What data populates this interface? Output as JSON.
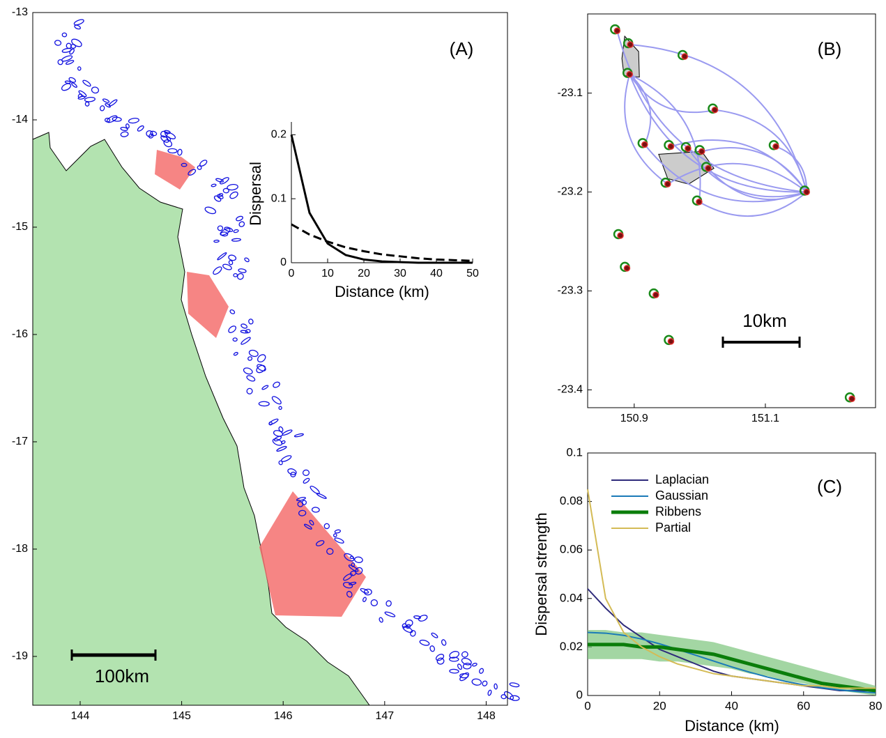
{
  "chart_data": [
    {
      "type": "map",
      "label": "(A)",
      "scale_bar": "100km",
      "xlim": [
        143.533,
        148.21
      ],
      "ylim": [
        -19.455,
        -13
      ],
      "xticks": [
        144,
        145,
        146,
        147,
        148
      ],
      "yticks": [
        -13,
        -14,
        -15,
        -16,
        -17,
        -18,
        -19
      ],
      "inset": {
        "type": "line",
        "xlabel": "Distance (km)",
        "ylabel": "Dispersal",
        "xlim": [
          0,
          50
        ],
        "ylim": [
          0,
          0.22
        ],
        "xticks": [
          0,
          10,
          20,
          30,
          40,
          50
        ],
        "yticks": [
          0,
          0.1,
          0.2
        ],
        "x": [
          0,
          5,
          10,
          15,
          20,
          25,
          30,
          35,
          40,
          45,
          50
        ],
        "series": [
          {
            "color": "#000000",
            "style": "solid",
            "values": [
              0.2,
              0.078,
              0.03,
              0.012,
              0.005,
              0.002,
              0.001,
              0,
              0,
              0,
              0
            ]
          },
          {
            "color": "#000000",
            "style": "dashed",
            "values": [
              0.06,
              0.044,
              0.033,
              0.024,
              0.018,
              0.013,
              0.01,
              0.007,
              0.005,
              0.004,
              0.003
            ]
          }
        ]
      }
    },
    {
      "type": "map",
      "label": "(B)",
      "scale_bar": "10km",
      "xlim": [
        150.829,
        151.268
      ],
      "ylim": [
        -23.418,
        -23.02
      ],
      "xticks": [
        150.9,
        151.1
      ],
      "yticks": [
        -23.1,
        -23.2,
        -23.3,
        -23.4
      ],
      "points": {
        "x": [
          150.874,
          150.894,
          150.893,
          150.977,
          151.023,
          150.916,
          150.956,
          150.982,
          151.003,
          151.013,
          150.951,
          150.999,
          151.116,
          151.163,
          150.879,
          150.889,
          150.933,
          150.956,
          151.232
        ],
        "y": [
          -23.037,
          -23.051,
          -23.081,
          -23.063,
          -23.117,
          -23.152,
          -23.154,
          -23.156,
          -23.159,
          -23.176,
          -23.192,
          -23.21,
          -23.154,
          -23.2,
          -23.244,
          -23.277,
          -23.304,
          -23.351,
          -23.409
        ]
      }
    },
    {
      "type": "line",
      "label": "(C)",
      "xlabel": "Distance (km)",
      "ylabel": "Dispersal strength",
      "xlim": [
        0,
        80
      ],
      "ylim": [
        0,
        0.1
      ],
      "xticks": [
        0,
        20,
        40,
        60,
        80
      ],
      "yticks": [
        0,
        0.02,
        0.04,
        0.06,
        0.08,
        0.1
      ],
      "x": [
        0,
        5,
        10,
        15,
        20,
        25,
        30,
        35,
        40,
        45,
        50,
        55,
        60,
        65,
        70,
        75,
        80
      ],
      "series": [
        {
          "name": "Laplacian",
          "color": "#2e2a7a",
          "width": 2,
          "values": [
            0.044,
            0.036,
            0.029,
            0.024,
            0.019,
            0.016,
            0.013,
            0.01,
            0.008,
            0.007,
            0.006,
            0.005,
            0.004,
            0.003,
            0.002,
            0.002,
            0.002
          ]
        },
        {
          "name": "Gaussian",
          "color": "#1a7ab8",
          "width": 2,
          "values": [
            0.026,
            0.0257,
            0.0248,
            0.0233,
            0.0213,
            0.019,
            0.0166,
            0.0142,
            0.0118,
            0.0096,
            0.0076,
            0.0058,
            0.0044,
            0.0032,
            0.0023,
            0.0016,
            0.0011
          ]
        },
        {
          "name": "Ribbens",
          "color": "#0a7d0a",
          "width": 5,
          "values": [
            0.021,
            0.021,
            0.021,
            0.02,
            0.02,
            0.019,
            0.018,
            0.017,
            0.015,
            0.013,
            0.011,
            0.009,
            0.007,
            0.005,
            0.004,
            0.003,
            0.002
          ],
          "band": {
            "color": "#7cc47c",
            "upper": [
              0.027,
              0.027,
              0.026,
              0.026,
              0.025,
              0.024,
              0.023,
              0.022,
              0.02,
              0.018,
              0.016,
              0.014,
              0.012,
              0.01,
              0.008,
              0.006,
              0.004
            ],
            "lower": [
              0.015,
              0.015,
              0.015,
              0.015,
              0.014,
              0.014,
              0.013,
              0.012,
              0.011,
              0.009,
              0.008,
              0.006,
              0.005,
              0.003,
              0.002,
              0.001,
              0
            ]
          }
        },
        {
          "name": "Partial",
          "color": "#d4bb55",
          "width": 2,
          "values": [
            0.085,
            0.04,
            0.026,
            0.02,
            0.016,
            0.013,
            0.011,
            0.009,
            0.008,
            0.007,
            0.006,
            0.005,
            0.004,
            0.004,
            0.003,
            0.003,
            0.003
          ]
        }
      ]
    }
  ]
}
